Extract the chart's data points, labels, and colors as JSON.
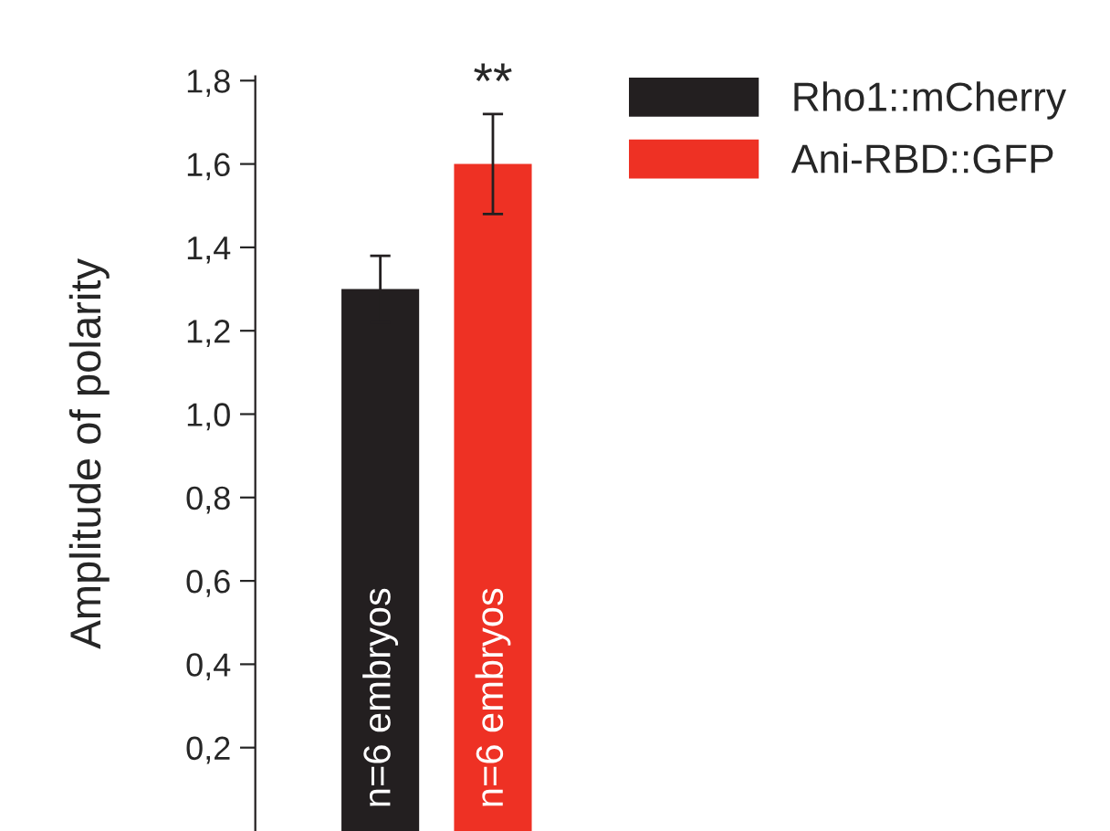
{
  "chart_data": {
    "type": "bar",
    "categories": [
      null
    ],
    "ylabel": "Amplitude of polarity",
    "series": [
      {
        "name": "Rho1::mCherry",
        "color": "#231f20",
        "values": [
          1.3
        ],
        "errors": [
          0.08
        ]
      },
      {
        "name": "Ani-RBD::GFP",
        "color": "#ee3124",
        "values": [
          1.6
        ],
        "errors": [
          0.12
        ]
      }
    ],
    "ylim": [
      0,
      1.81
    ],
    "yticks": [
      {
        "value": 0.2,
        "label": "0,2"
      },
      {
        "value": 0.4,
        "label": "0,4"
      },
      {
        "value": 0.6,
        "label": "0,6"
      },
      {
        "value": 0.8,
        "label": "0,8"
      },
      {
        "value": 1.0,
        "label": "1,0"
      },
      {
        "value": 1.2,
        "label": "1,2"
      },
      {
        "value": 1.4,
        "label": "1,4"
      },
      {
        "value": 1.6,
        "label": "1,6"
      },
      {
        "value": 1.8,
        "label": "1,8"
      }
    ],
    "annotations": [
      "**",
      "n=6 embryos",
      "n=6 embryos"
    ],
    "tick_labels": "y",
    "legend": "top right",
    "grid": false
  }
}
